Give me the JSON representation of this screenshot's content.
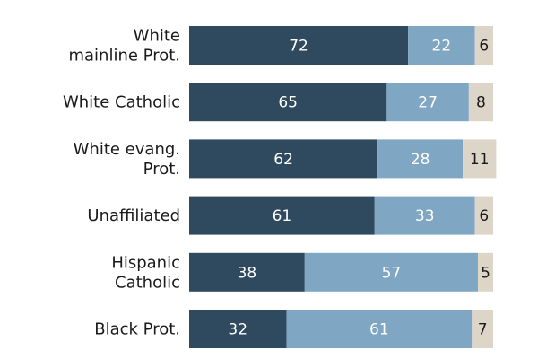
{
  "chart_data": {
    "type": "bar",
    "orientation": "horizontal",
    "stacked": true,
    "categories": [
      [
        "White",
        "mainline Prot."
      ],
      [
        "White Catholic"
      ],
      [
        "White evang.",
        "Prot."
      ],
      [
        "Unaffiliated"
      ],
      [
        "Hispanic",
        "Catholic"
      ],
      [
        "Black Prot."
      ]
    ],
    "series": [
      {
        "values": [
          72,
          65,
          62,
          61,
          38,
          32
        ],
        "color": "#2f4a5e",
        "label_color": "#ffffff"
      },
      {
        "values": [
          22,
          27,
          28,
          33,
          57,
          61
        ],
        "color": "#7fa6c3",
        "label_color": "#ffffff"
      },
      {
        "values": [
          6,
          8,
          11,
          6,
          5,
          7
        ],
        "color": "#ddd6c8",
        "label_color": "#1a1a1a"
      }
    ],
    "xlim": [
      0,
      100
    ],
    "grid": false,
    "legend": "none"
  }
}
